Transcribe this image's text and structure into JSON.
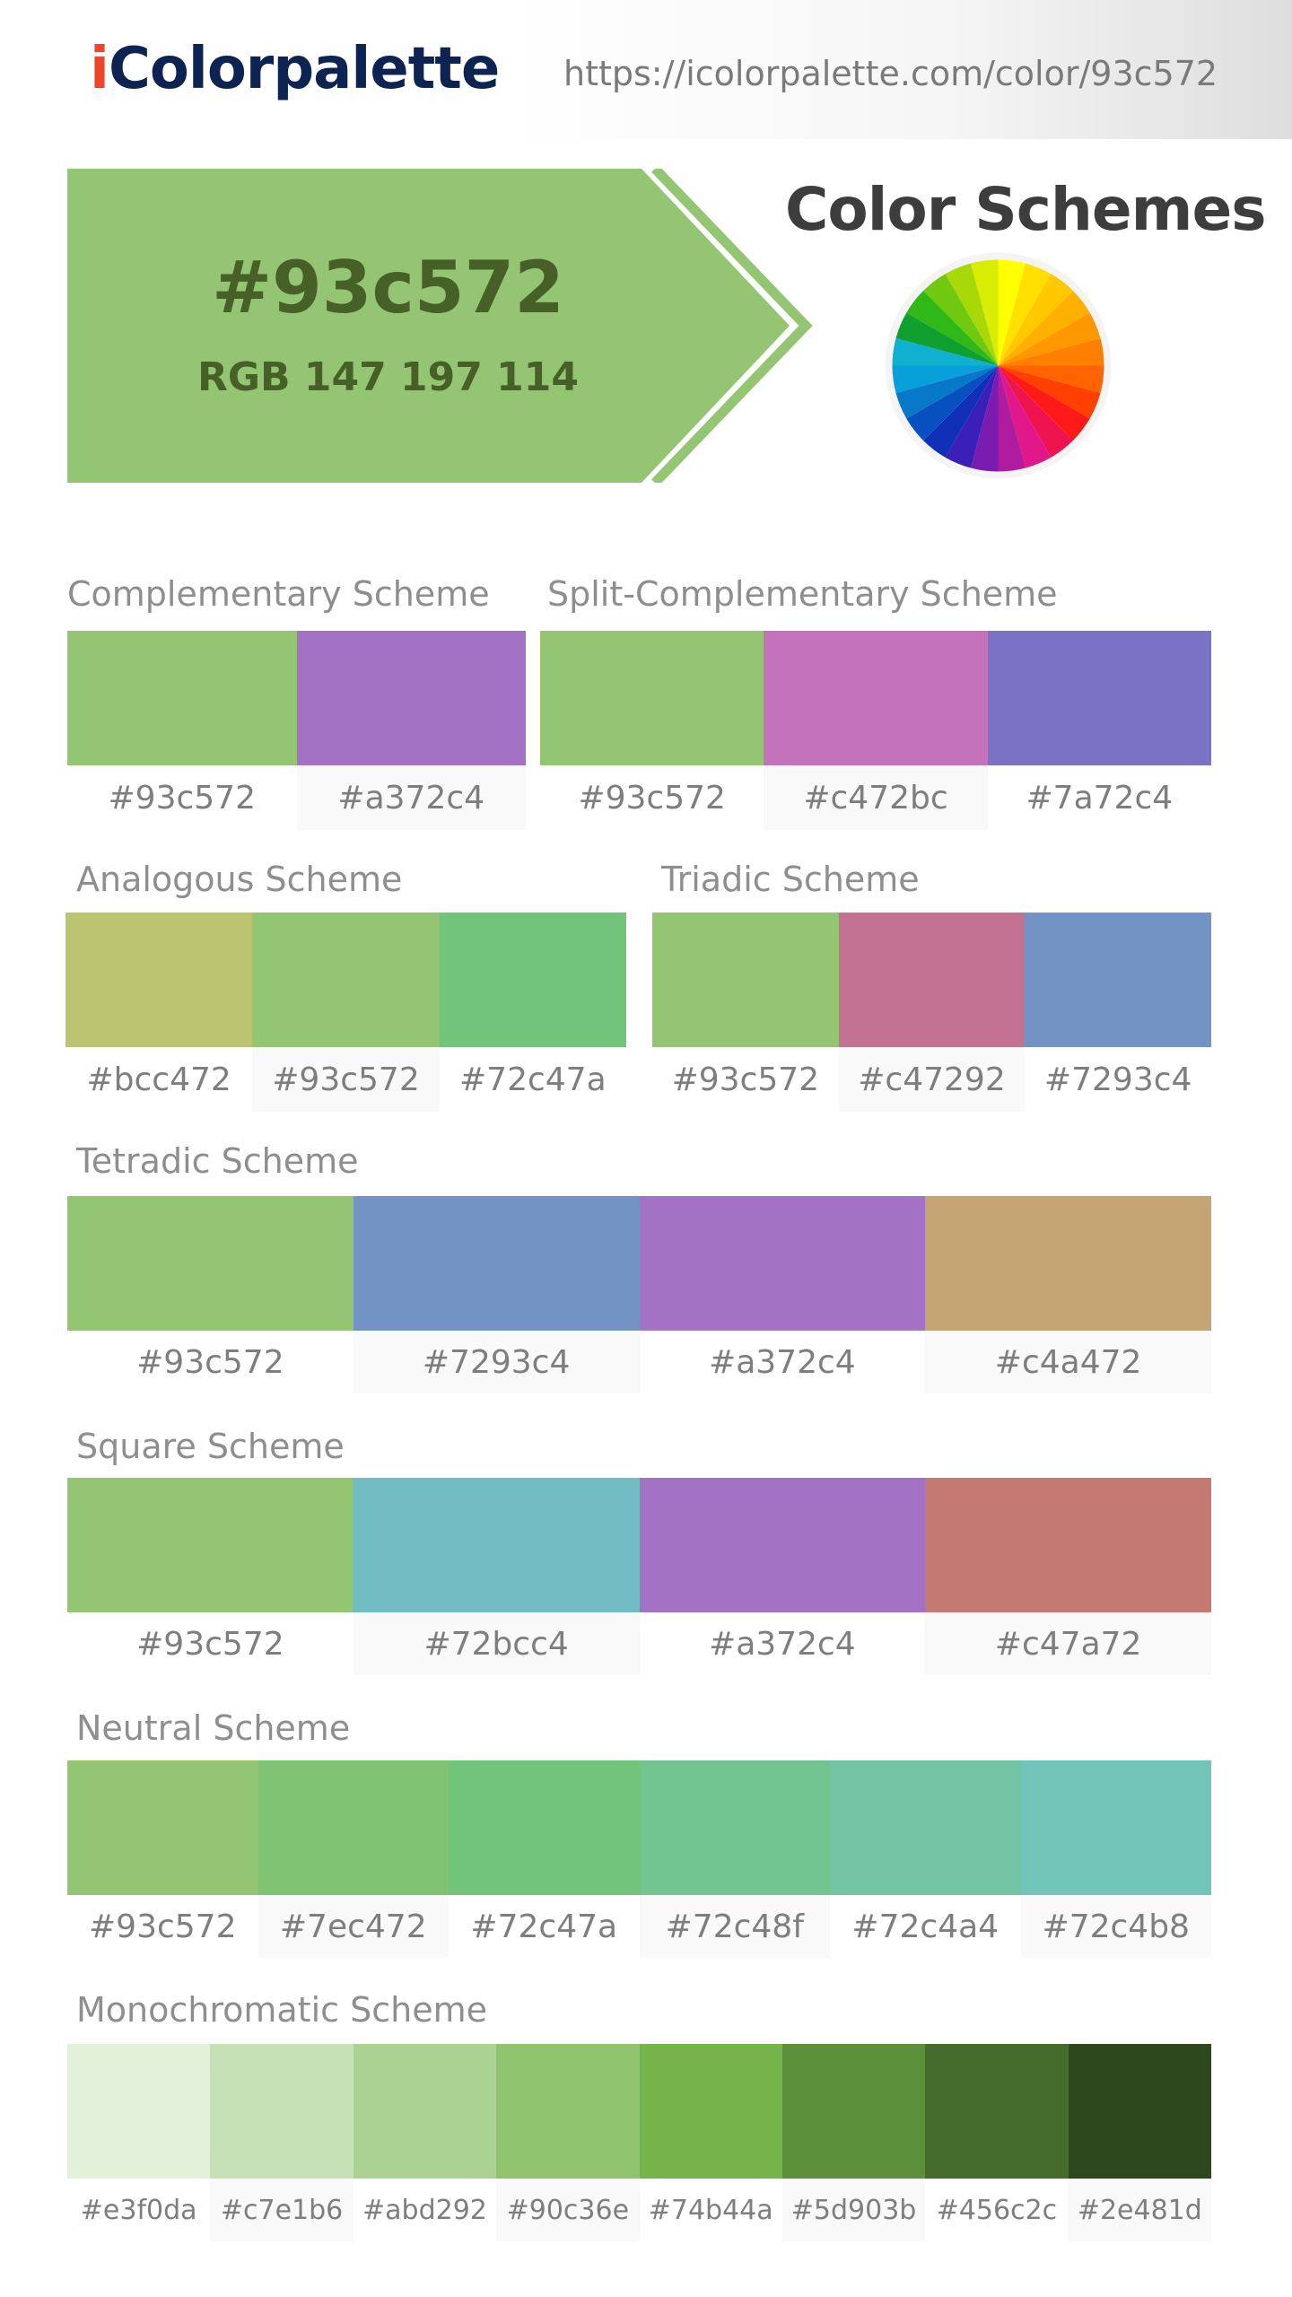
{
  "header": {
    "logo_prefix": "i",
    "logo_rest": "Colorpalette",
    "url": "https://icolorpalette.com/color/93c572"
  },
  "hero": {
    "hex": "#93c572",
    "rgb": "RGB 147 197 114",
    "color": "#93c572",
    "text_color": "#466027"
  },
  "schemes_title": "Color Schemes",
  "color_wheel": {
    "icon": "color-wheel-icon",
    "colors": [
      "#ffff00",
      "#ffe000",
      "#ffc800",
      "#ffb000",
      "#ff9800",
      "#ff8000",
      "#ff6400",
      "#ff4000",
      "#ff1a1a",
      "#ee1450",
      "#e0188a",
      "#b01ca0",
      "#7a1cb0",
      "#3a20b8",
      "#1030b8",
      "#0850c0",
      "#0878c8",
      "#08a0d8",
      "#10b0d0",
      "#10a030",
      "#30b818",
      "#70c810",
      "#a8d808",
      "#d8ec04"
    ]
  },
  "schemes": {
    "complementary": {
      "title": "Complementary Scheme",
      "colors": [
        "#93c572",
        "#a372c4"
      ],
      "labels": [
        "#93c572",
        "#a372c4"
      ]
    },
    "split_complementary": {
      "title": "Split-Complementary Scheme",
      "colors": [
        "#93c572",
        "#c472bc",
        "#7a72c4"
      ],
      "labels": [
        "#93c572",
        "#c472bc",
        "#7a72c4"
      ]
    },
    "analogous": {
      "title": "Analogous Scheme",
      "colors": [
        "#bcc472",
        "#93c572",
        "#72c47a"
      ],
      "labels": [
        "#bcc472",
        "#93c572",
        "#72c47a"
      ]
    },
    "triadic": {
      "title": "Triadic Scheme",
      "colors": [
        "#93c572",
        "#c47292",
        "#7293c4"
      ],
      "labels": [
        "#93c572",
        "#c47292",
        "#7293c4"
      ]
    },
    "tetradic": {
      "title": "Tetradic Scheme",
      "colors": [
        "#93c572",
        "#7293c4",
        "#a372c4",
        "#c4a472"
      ],
      "labels": [
        "#93c572",
        "#7293c4",
        "#a372c4",
        "#c4a472"
      ]
    },
    "square": {
      "title": "Square Scheme",
      "colors": [
        "#93c572",
        "#72bcc4",
        "#a372c4",
        "#c47a72"
      ],
      "labels": [
        "#93c572",
        "#72bcc4",
        "#a372c4",
        "#c47a72"
      ]
    },
    "neutral": {
      "title": "Neutral Scheme",
      "colors": [
        "#93c572",
        "#7ec472",
        "#72c47a",
        "#72c48f",
        "#72c4a4",
        "#72c4b8"
      ],
      "labels": [
        "#93c572",
        "#7ec472",
        "#72c47a",
        "#72c48f",
        "#72c4a4",
        "#72c4b8"
      ]
    },
    "monochromatic": {
      "title": "Monochromatic Scheme",
      "colors": [
        "#e3f0da",
        "#c7e1b6",
        "#abd292",
        "#90c36e",
        "#74b44a",
        "#5d903b",
        "#456c2c",
        "#2e481d"
      ],
      "labels": [
        "#e3f0da",
        "#c7e1b6",
        "#abd292",
        "#90c36e",
        "#74b44a",
        "#5d903b",
        "#456c2c",
        "#2e481d"
      ]
    }
  }
}
